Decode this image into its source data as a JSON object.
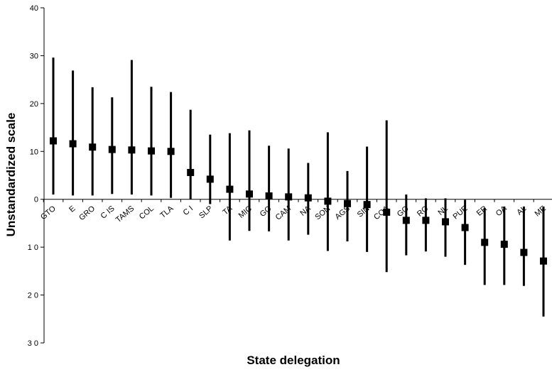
{
  "chart_data": {
    "type": "scatter",
    "xlabel": "State delegation",
    "ylabel": "Unstandardized scale",
    "ylim": [
      -30,
      40
    ],
    "yticks": [
      40,
      30,
      20,
      10,
      0,
      -10,
      -20,
      -30
    ],
    "ytick_labels": [
      "40",
      "30",
      "20",
      "10",
      "0",
      "1 0",
      "2 0",
      "3 0"
    ],
    "categories": [
      "GTO",
      "E",
      "GRO",
      "C IS",
      "TAMS",
      "COL",
      "TLA",
      "C I",
      "SLP",
      "TA",
      "MIC",
      "GO",
      "CAM",
      "NA",
      "SON",
      "AGS",
      "SIN",
      "COA",
      "GO",
      "RO",
      "NL",
      "PUE",
      "ER",
      "OA",
      "AL",
      "ME"
    ],
    "series": [
      {
        "values": [
          12.2,
          11.6,
          10.9,
          10.4,
          10.3,
          10.1,
          10.0,
          5.6,
          4.2,
          2.1,
          1.1,
          0.7,
          0.5,
          0.3,
          -0.4,
          -0.9,
          -1.1,
          -2.7,
          -4.4,
          -4.4,
          -4.7,
          -5.9,
          -9.0,
          -9.4,
          -11.1,
          -12.9
        ],
        "upper": [
          29.6,
          26.9,
          23.4,
          21.3,
          29.1,
          23.5,
          22.4,
          18.7,
          13.5,
          13.8,
          14.4,
          11.2,
          10.6,
          7.6,
          14.0,
          5.9,
          11.0,
          16.5,
          1.0,
          0.2,
          0.2,
          -0.1,
          -1.8,
          -1.5,
          -1.5,
          -1.5
        ],
        "lower": [
          1.0,
          0.8,
          0.8,
          1.1,
          1.0,
          0.8,
          0.3,
          0.0,
          -1.0,
          -8.6,
          -6.6,
          -6.7,
          -8.6,
          -7.4,
          -10.8,
          -8.8,
          -11.0,
          -15.2,
          -11.7,
          -10.9,
          -12.0,
          -13.7,
          -17.9,
          -17.9,
          -18.1,
          -24.5
        ]
      }
    ],
    "grid": false,
    "legend": "none",
    "marker_color": "#000000"
  }
}
